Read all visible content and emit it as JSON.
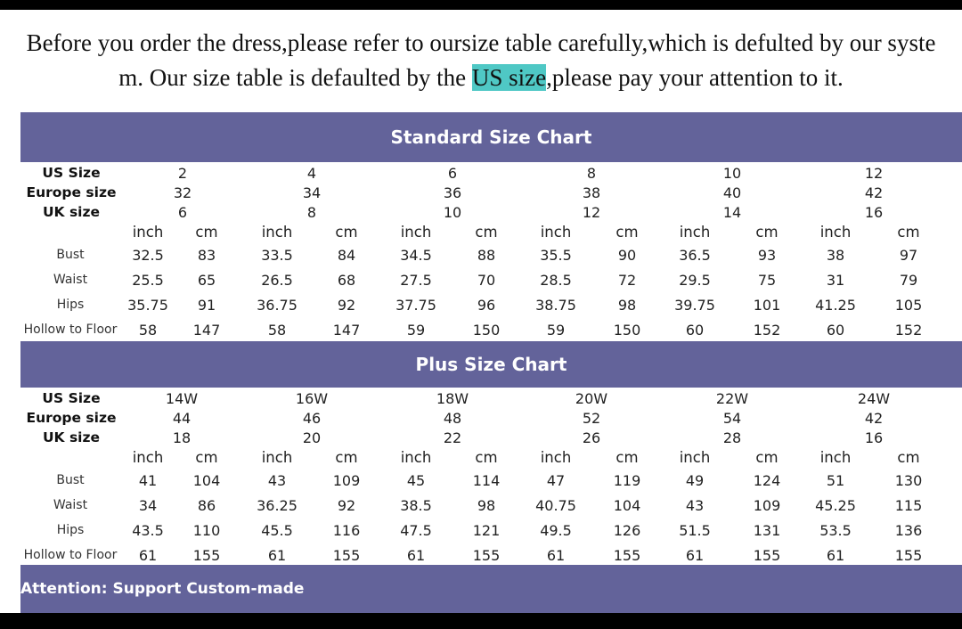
{
  "intro": {
    "line1": "Before you order the dress,please refer to oursize table carefully,which is defulted by our syste",
    "line2_pre": "m. Our size table is defaulted by the ",
    "line2_highlight": "US size",
    "line2_post": ",please pay your attention to it."
  },
  "standard": {
    "title": "Standard Size Chart",
    "labels": {
      "us": "US Size",
      "eu": "Europe size",
      "uk": "UK size"
    },
    "sizes": [
      {
        "us": "2",
        "eu": "32",
        "uk": "6"
      },
      {
        "us": "4",
        "eu": "34",
        "uk": "8"
      },
      {
        "us": "6",
        "eu": "36",
        "uk": "10"
      },
      {
        "us": "8",
        "eu": "38",
        "uk": "12"
      },
      {
        "us": "10",
        "eu": "40",
        "uk": "14"
      },
      {
        "us": "12",
        "eu": "42",
        "uk": "16"
      }
    ],
    "units": [
      "inch",
      "cm"
    ],
    "rows": [
      {
        "label": "Bust",
        "values": [
          "32.5",
          "83",
          "33.5",
          "84",
          "34.5",
          "88",
          "35.5",
          "90",
          "36.5",
          "93",
          "38",
          "97"
        ]
      },
      {
        "label": "Waist",
        "values": [
          "25.5",
          "65",
          "26.5",
          "68",
          "27.5",
          "70",
          "28.5",
          "72",
          "29.5",
          "75",
          "31",
          "79"
        ]
      },
      {
        "label": "Hips",
        "values": [
          "35.75",
          "91",
          "36.75",
          "92",
          "37.75",
          "96",
          "38.75",
          "98",
          "39.75",
          "101",
          "41.25",
          "105"
        ]
      },
      {
        "label": "Hollow to Floor",
        "values": [
          "58",
          "147",
          "58",
          "147",
          "59",
          "150",
          "59",
          "150",
          "60",
          "152",
          "60",
          "152"
        ]
      }
    ]
  },
  "plus": {
    "title": "Plus Size Chart",
    "labels": {
      "us": "US Size",
      "eu": "Europe size",
      "uk": "UK size"
    },
    "sizes": [
      {
        "us": "14W",
        "eu": "44",
        "uk": "18"
      },
      {
        "us": "16W",
        "eu": "46",
        "uk": "20"
      },
      {
        "us": "18W",
        "eu": "48",
        "uk": "22"
      },
      {
        "us": "20W",
        "eu": "52",
        "uk": "26"
      },
      {
        "us": "22W",
        "eu": "54",
        "uk": "28"
      },
      {
        "us": "24W",
        "eu": "42",
        "uk": "16"
      }
    ],
    "units": [
      "inch",
      "cm"
    ],
    "rows": [
      {
        "label": "Bust",
        "values": [
          "41",
          "104",
          "43",
          "109",
          "45",
          "114",
          "47",
          "119",
          "49",
          "124",
          "51",
          "130"
        ]
      },
      {
        "label": "Waist",
        "values": [
          "34",
          "86",
          "36.25",
          "92",
          "38.5",
          "98",
          "40.75",
          "104",
          "43",
          "109",
          "45.25",
          "115"
        ]
      },
      {
        "label": "Hips",
        "values": [
          "43.5",
          "110",
          "45.5",
          "116",
          "47.5",
          "121",
          "49.5",
          "126",
          "51.5",
          "131",
          "53.5",
          "136"
        ]
      },
      {
        "label": "Hollow to Floor",
        "values": [
          "61",
          "155",
          "61",
          "155",
          "61",
          "155",
          "61",
          "155",
          "61",
          "155",
          "61",
          "155"
        ]
      }
    ]
  },
  "footer": {
    "text": "Attention: Support Custom-made"
  },
  "colors": {
    "band": "#63639a",
    "highlight": "#4fc8c5"
  }
}
